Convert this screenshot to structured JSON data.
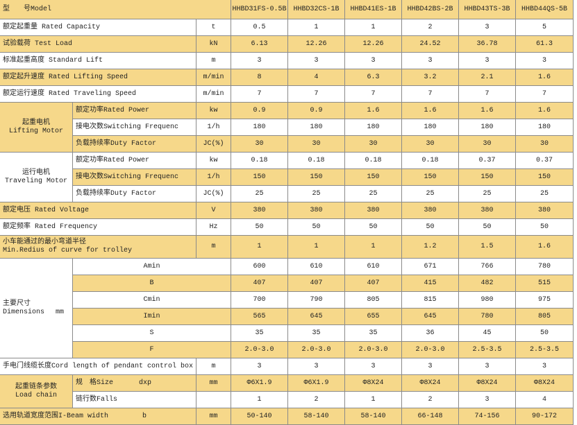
{
  "header": {
    "label": "型　　号Model",
    "models": [
      "HHBD31FS-0.5B",
      "HHBD32CS-1B",
      "HHBD41ES-1B",
      "HHBD42BS-2B",
      "HHBD43TS-3B",
      "HHBD44QS-5B"
    ]
  },
  "rows": [
    {
      "label": "额定起重量 Rated Capacity",
      "unit": "t",
      "values": [
        "0.5",
        "1",
        "1",
        "2",
        "3",
        "5"
      ]
    },
    {
      "label": "试验载荷 Test Load",
      "unit": "kN",
      "values": [
        "6.13",
        "12.26",
        "12.26",
        "24.52",
        "36.78",
        "61.3"
      ]
    },
    {
      "label": "标准起重高度 Standard Lift",
      "unit": "m",
      "values": [
        "3",
        "3",
        "3",
        "3",
        "3",
        "3"
      ]
    },
    {
      "label": "额定起升速度  Rated Lifting Speed",
      "unit": "m/min",
      "values": [
        "8",
        "4",
        "6.3",
        "3.2",
        "2.1",
        "1.6"
      ]
    },
    {
      "label": "额定运行速度  Rated Traveling Speed",
      "unit": "m/min",
      "values": [
        "7",
        "7",
        "7",
        "7",
        "7",
        "7"
      ]
    },
    {
      "group": [
        "起重电机",
        "Lifting Motor"
      ],
      "items": [
        {
          "label": "额定功率Rated Power",
          "unit": "kw",
          "values": [
            "0.9",
            "0.9",
            "1.6",
            "1.6",
            "1.6",
            "1.6"
          ]
        },
        {
          "label": "接电次数Switching Frequenc",
          "unit": "1/h",
          "values": [
            "180",
            "180",
            "180",
            "180",
            "180",
            "180"
          ]
        },
        {
          "label": "负载持续率Duty Factor",
          "unit": "JC(%)",
          "values": [
            "30",
            "30",
            "30",
            "30",
            "30",
            "30"
          ]
        }
      ]
    },
    {
      "group": [
        "运行电机",
        "Traveling Motor"
      ],
      "items": [
        {
          "label": "额定功率Rated Power",
          "unit": "kw",
          "values": [
            "0.18",
            "0.18",
            "0.18",
            "0.18",
            "0.37",
            "0.37"
          ]
        },
        {
          "label": "接电次数Switching Frequenc",
          "unit": "1/h",
          "values": [
            "150",
            "150",
            "150",
            "150",
            "150",
            "150"
          ]
        },
        {
          "label": "负载持续率Duty Factor",
          "unit": "JC(%)",
          "values": [
            "25",
            "25",
            "25",
            "25",
            "25",
            "25"
          ]
        }
      ]
    },
    {
      "label": "额定电压 Rated Voltage",
      "unit": "V",
      "values": [
        "380",
        "380",
        "380",
        "380",
        "380",
        "380"
      ]
    },
    {
      "label": "额定频率  Rated Frequency",
      "unit": "Hz",
      "values": [
        "50",
        "50",
        "50",
        "50",
        "50",
        "50"
      ]
    },
    {
      "label": [
        "小车能通过的最小弯道半径",
        "Min.Redius of curve for trolley"
      ],
      "unit": "m",
      "values": [
        "1",
        "1",
        "1",
        "1.2",
        "1.5",
        "1.6"
      ]
    },
    {
      "group": [
        "主要尺寸",
        "Dimensions　 mm"
      ],
      "items": [
        {
          "label": "Amin",
          "values": [
            "600",
            "610",
            "610",
            "671",
            "766",
            "780"
          ]
        },
        {
          "label": "B",
          "values": [
            "407",
            "407",
            "407",
            "415",
            "482",
            "515"
          ]
        },
        {
          "label": "Cmin",
          "values": [
            "700",
            "790",
            "805",
            "815",
            "980",
            "975"
          ]
        },
        {
          "label": "Imin",
          "values": [
            "565",
            "645",
            "655",
            "645",
            "780",
            "805"
          ]
        },
        {
          "label": "S",
          "values": [
            "35",
            "35",
            "35",
            "36",
            "45",
            "50"
          ]
        },
        {
          "label": "F",
          "values": [
            "2.0-3.0",
            "2.0-3.0",
            "2.0-3.0",
            "2.0-3.0",
            "2.5-3.5",
            "2.5-3.5"
          ]
        }
      ]
    },
    {
      "label": "手电门线缆长度Cord length of pendant control box",
      "unit": "m",
      "values": [
        "3",
        "3",
        "3",
        "3",
        "3",
        "3"
      ]
    },
    {
      "group": [
        "起重链条参数",
        "Load chain"
      ],
      "items": [
        {
          "label": "规　格Size",
          "symbol": "dxp",
          "unit": "mm",
          "values": [
            "Φ6X1.9",
            "Φ6X1.9",
            "Φ8X24",
            "Φ8X24",
            "Φ8X24",
            "Φ8X24"
          ]
        },
        {
          "label": "链行数Falls",
          "values": [
            "1",
            "2",
            "1",
            "2",
            "3",
            "4"
          ]
        }
      ]
    },
    {
      "label": "选用轨道宽度范围I-Beam width",
      "symbol": "b",
      "unit": "mm",
      "values": [
        "50-140",
        "58-140",
        "58-140",
        "66-148",
        "74-156",
        "90-172"
      ]
    }
  ]
}
